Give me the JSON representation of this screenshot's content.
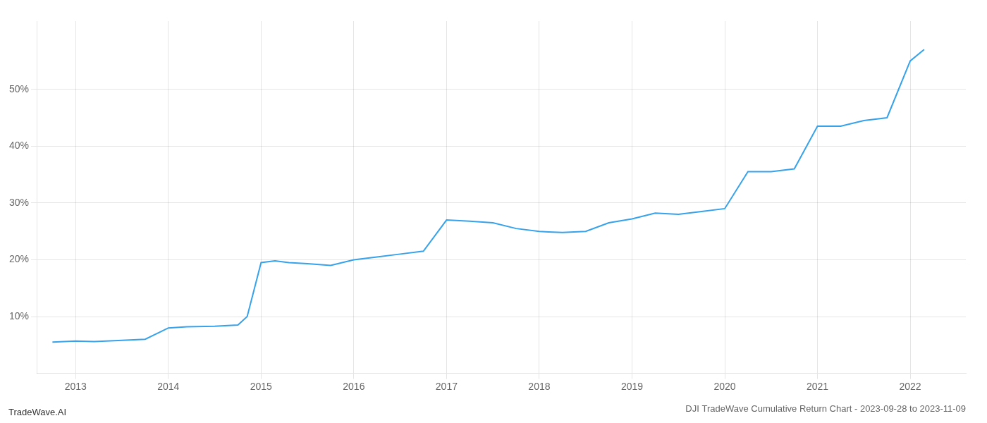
{
  "chart_data": {
    "type": "line",
    "title": "DJI TradeWave Cumulative Return Chart - 2023-09-28 to 2023-11-09",
    "annotations": [
      "TradeWave.AI"
    ],
    "x": [
      2012.75,
      2013.0,
      2013.2,
      2013.5,
      2013.75,
      2013.9,
      2014.0,
      2014.2,
      2014.5,
      2014.75,
      2014.85,
      2015.0,
      2015.15,
      2015.3,
      2015.5,
      2015.75,
      2016.0,
      2016.25,
      2016.5,
      2016.75,
      2017.0,
      2017.25,
      2017.5,
      2017.75,
      2018.0,
      2018.1,
      2018.25,
      2018.5,
      2018.75,
      2019.0,
      2019.25,
      2019.5,
      2019.75,
      2020.0,
      2020.25,
      2020.5,
      2020.75,
      2021.0,
      2021.25,
      2021.5,
      2021.75,
      2022.0,
      2022.15
    ],
    "values": [
      5.5,
      5.7,
      5.6,
      5.8,
      6.0,
      7.2,
      8.0,
      8.2,
      8.3,
      8.5,
      10.0,
      19.5,
      19.8,
      19.5,
      19.3,
      19.0,
      20.0,
      20.5,
      21.0,
      21.5,
      27.0,
      26.8,
      26.5,
      25.5,
      25.0,
      24.9,
      24.8,
      25.0,
      26.5,
      27.2,
      28.2,
      28.0,
      28.5,
      29.0,
      35.5,
      35.5,
      36.0,
      43.5,
      43.5,
      44.5,
      45.0,
      55.0,
      57.0
    ],
    "xlim": [
      2012.58,
      2022.6
    ],
    "ylim": [
      0,
      62
    ],
    "xticks": [
      2013,
      2014,
      2015,
      2016,
      2017,
      2018,
      2019,
      2020,
      2021,
      2022
    ],
    "yticks": [
      {
        "value": 10,
        "label": "10%"
      },
      {
        "value": 20,
        "label": "20%"
      },
      {
        "value": 30,
        "label": "30%"
      },
      {
        "value": 40,
        "label": "40%"
      },
      {
        "value": 50,
        "label": "50%"
      }
    ],
    "grid": true
  }
}
